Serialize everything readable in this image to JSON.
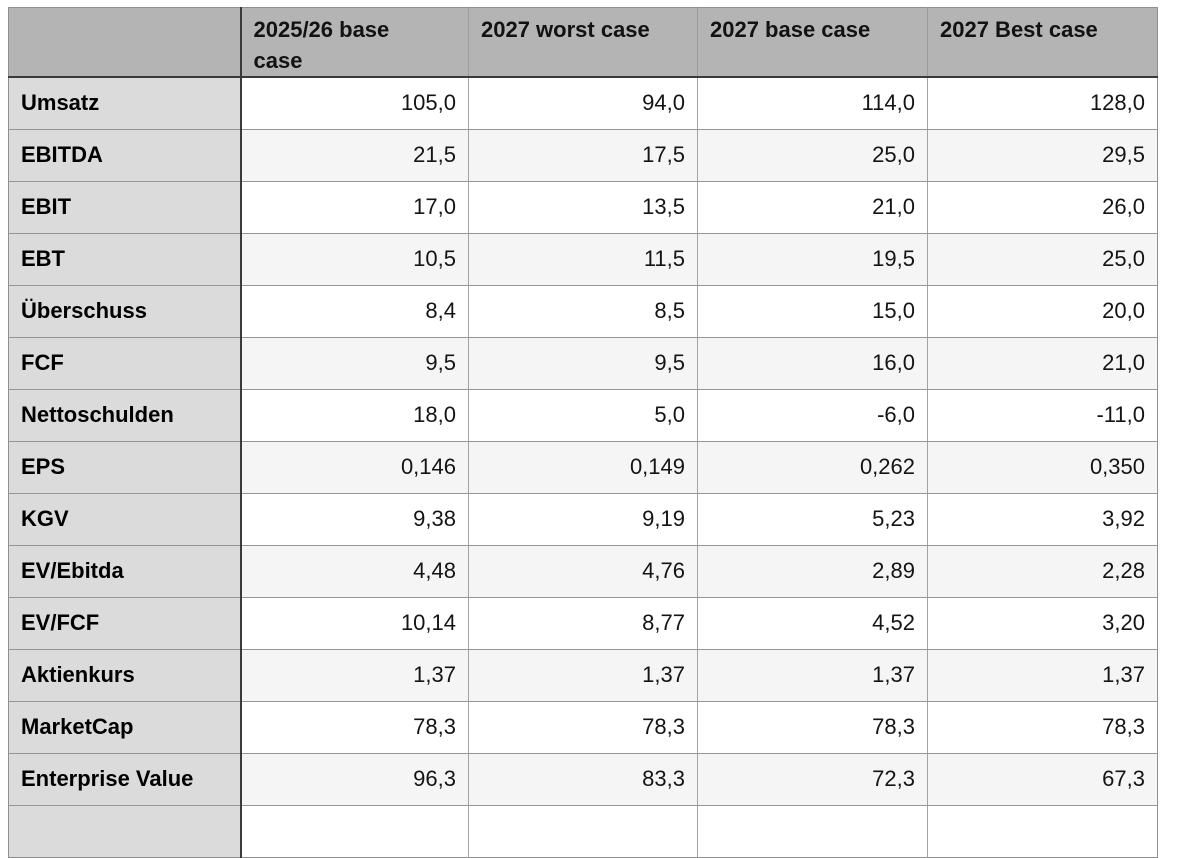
{
  "table": {
    "columns": [
      "",
      "2025/26 base case",
      "2027 worst case",
      "2027 base case",
      "2027 Best case"
    ],
    "rows": [
      {
        "label": "Umsatz",
        "values": [
          "105,0",
          "94,0",
          "114,0",
          "128,0"
        ]
      },
      {
        "label": "EBITDA",
        "values": [
          "21,5",
          "17,5",
          "25,0",
          "29,5"
        ]
      },
      {
        "label": "EBIT",
        "values": [
          "17,0",
          "13,5",
          "21,0",
          "26,0"
        ]
      },
      {
        "label": "EBT",
        "values": [
          "10,5",
          "11,5",
          "19,5",
          "25,0"
        ]
      },
      {
        "label": "Überschuss",
        "values": [
          "8,4",
          "8,5",
          "15,0",
          "20,0"
        ]
      },
      {
        "label": "FCF",
        "values": [
          "9,5",
          "9,5",
          "16,0",
          "21,0"
        ]
      },
      {
        "label": "Nettoschulden",
        "values": [
          "18,0",
          "5,0",
          "-6,0",
          "-11,0"
        ]
      },
      {
        "label": "EPS",
        "values": [
          "0,146",
          "0,149",
          "0,262",
          "0,350"
        ]
      },
      {
        "label": "KGV",
        "values": [
          "9,38",
          "9,19",
          "5,23",
          "3,92"
        ]
      },
      {
        "label": "EV/Ebitda",
        "values": [
          "4,48",
          "4,76",
          "2,89",
          "2,28"
        ]
      },
      {
        "label": "EV/FCF",
        "values": [
          "10,14",
          "8,77",
          "4,52",
          "3,20"
        ]
      },
      {
        "label": "Aktienkurs",
        "values": [
          "1,37",
          "1,37",
          "1,37",
          "1,37"
        ]
      },
      {
        "label": "MarketCap",
        "values": [
          "78,3",
          "78,3",
          "78,3",
          "78,3"
        ]
      },
      {
        "label": "Enterprise Value",
        "values": [
          "96,3",
          "83,3",
          "72,3",
          "67,3"
        ]
      }
    ]
  },
  "colors": {
    "header_bg": "#b4b4b4",
    "label_column_bg": "#dbdbdb",
    "alt_row_bg": "#f5f5f5",
    "row_bg": "#ffffff",
    "border_dark": "#3a3a3a",
    "border_light": "#969696",
    "text": "#141414"
  }
}
